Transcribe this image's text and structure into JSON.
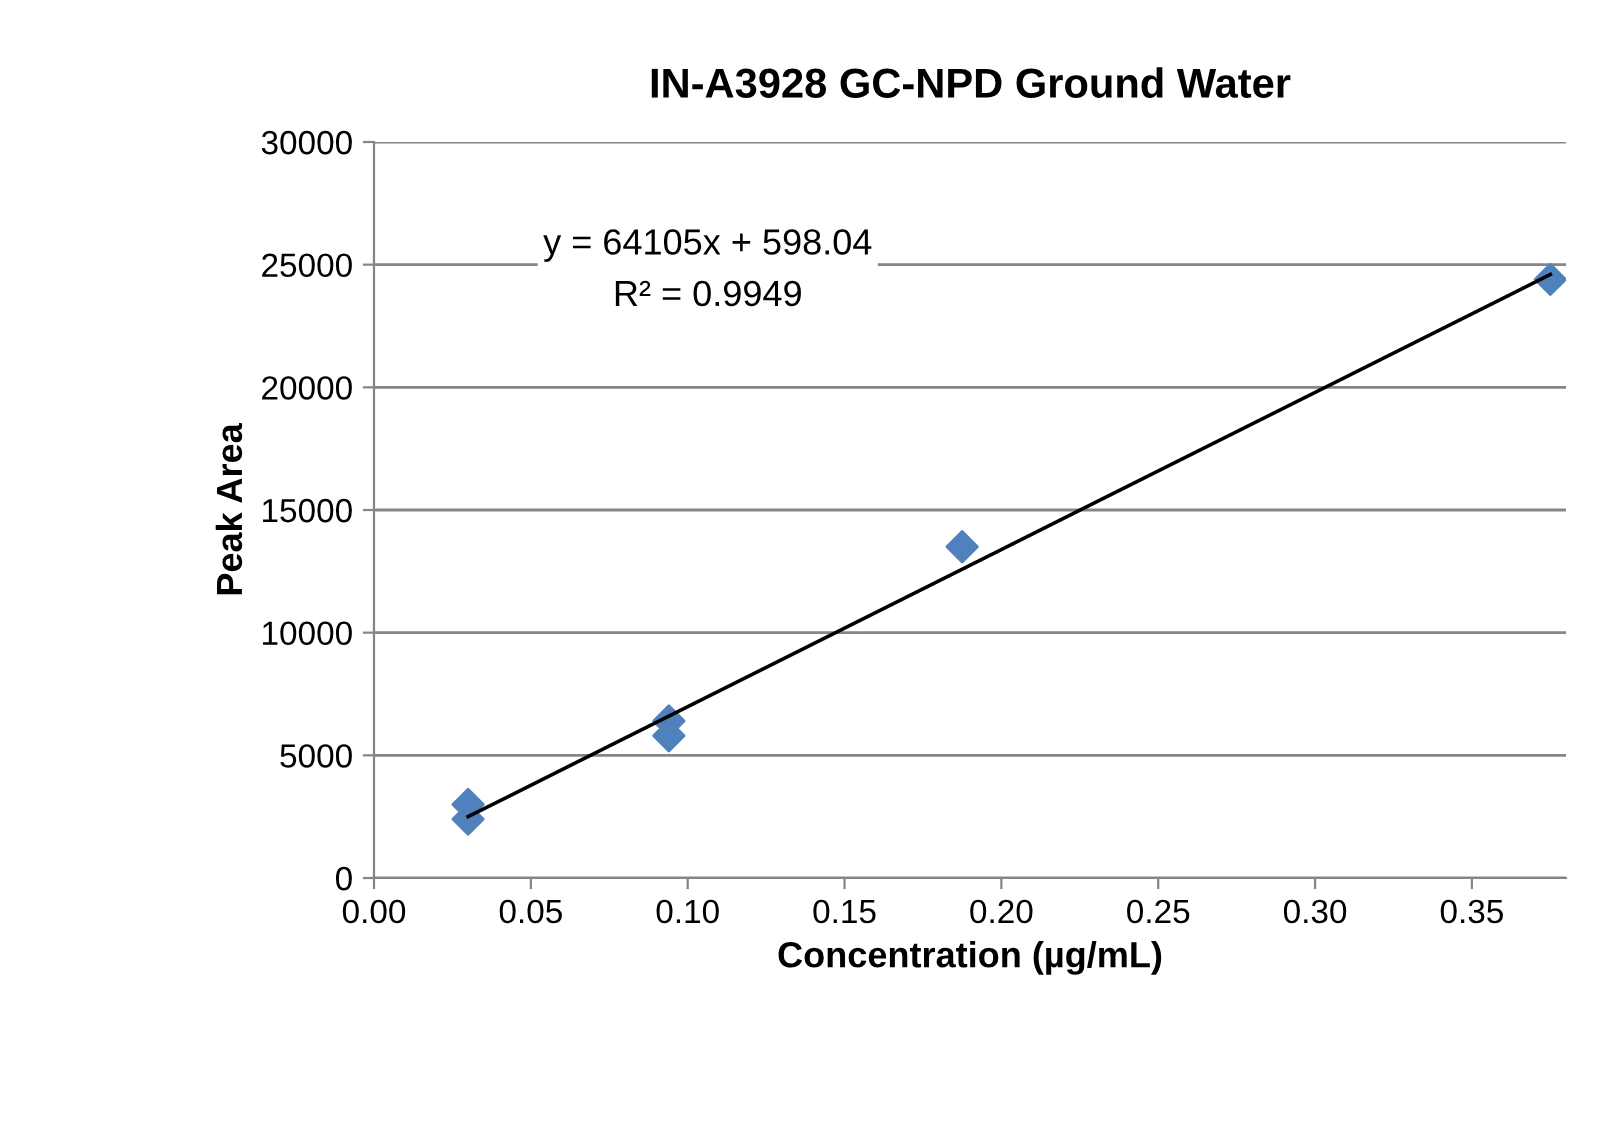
{
  "chart_data": {
    "type": "scatter",
    "title": "IN-A3928 GC-NPD Ground Water",
    "xlabel": "Concentration (µg/mL)",
    "ylabel": "Peak Area",
    "xlim": [
      0,
      0.38
    ],
    "xticks": [
      {
        "value": 0,
        "label": "0.00"
      },
      {
        "value": 0.05,
        "label": "0.05"
      },
      {
        "value": 0.1,
        "label": "0.10"
      },
      {
        "value": 0.15,
        "label": "0.15"
      },
      {
        "value": 0.2,
        "label": "0.20"
      },
      {
        "value": 0.25,
        "label": "0.25"
      },
      {
        "value": 0.3,
        "label": "0.30"
      },
      {
        "value": 0.35,
        "label": "0.35"
      }
    ],
    "ylim": [
      0,
      30000
    ],
    "yticks": [
      0,
      5000,
      10000,
      15000,
      20000,
      25000,
      30000
    ],
    "grid": "y",
    "legend": false,
    "series": [
      {
        "type": "scatter",
        "color": "#4f81bd",
        "marker": "diamond",
        "x": [
          0.03,
          0.03,
          0.094,
          0.094,
          0.1875,
          0.375
        ],
        "values": [
          3000,
          2400,
          6400,
          5800,
          13500,
          24400
        ]
      },
      {
        "type": "line",
        "color": "#000000",
        "marker": "none",
        "line_style": "solid",
        "x": [
          0.03,
          0.375
        ],
        "values": [
          2500,
          24600
        ]
      }
    ],
    "annotations": [
      "y = 64105x + 598.04",
      "R² = 0.9949"
    ]
  }
}
